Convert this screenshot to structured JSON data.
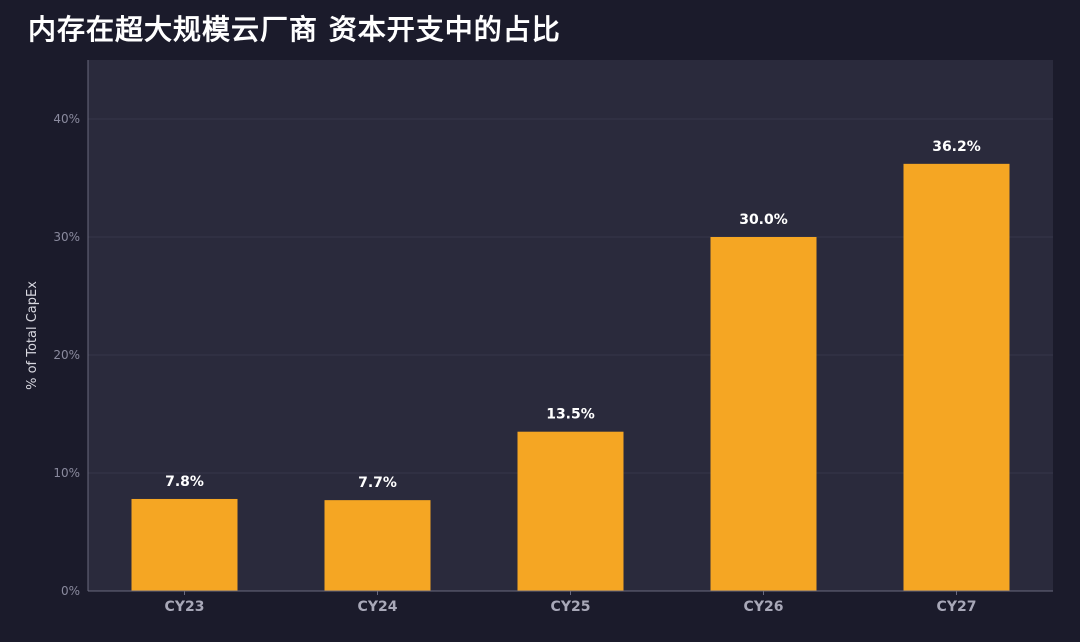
{
  "title": "内存在超大规模云厂商 资本开支中的占比",
  "colors": {
    "background": "#1b1b2b",
    "plot_background": "#2a2a3c",
    "bar": "#f5a623",
    "gridline": "#36364a",
    "axis": "#6a6a7e"
  },
  "chart_data": {
    "type": "bar",
    "categories": [
      "CY23",
      "CY24",
      "CY25",
      "CY26",
      "CY27"
    ],
    "values": [
      7.8,
      7.7,
      13.5,
      30.0,
      36.2
    ],
    "value_labels": [
      "7.8%",
      "7.7%",
      "13.5%",
      "30.0%",
      "36.2%"
    ],
    "ylabel": "% of Total CapEx",
    "yticks": [
      0,
      10,
      20,
      30,
      40
    ],
    "ytick_labels": [
      "0%",
      "10%",
      "20%",
      "30%",
      "40%"
    ],
    "ylim": [
      0,
      45
    ],
    "grid": true
  }
}
